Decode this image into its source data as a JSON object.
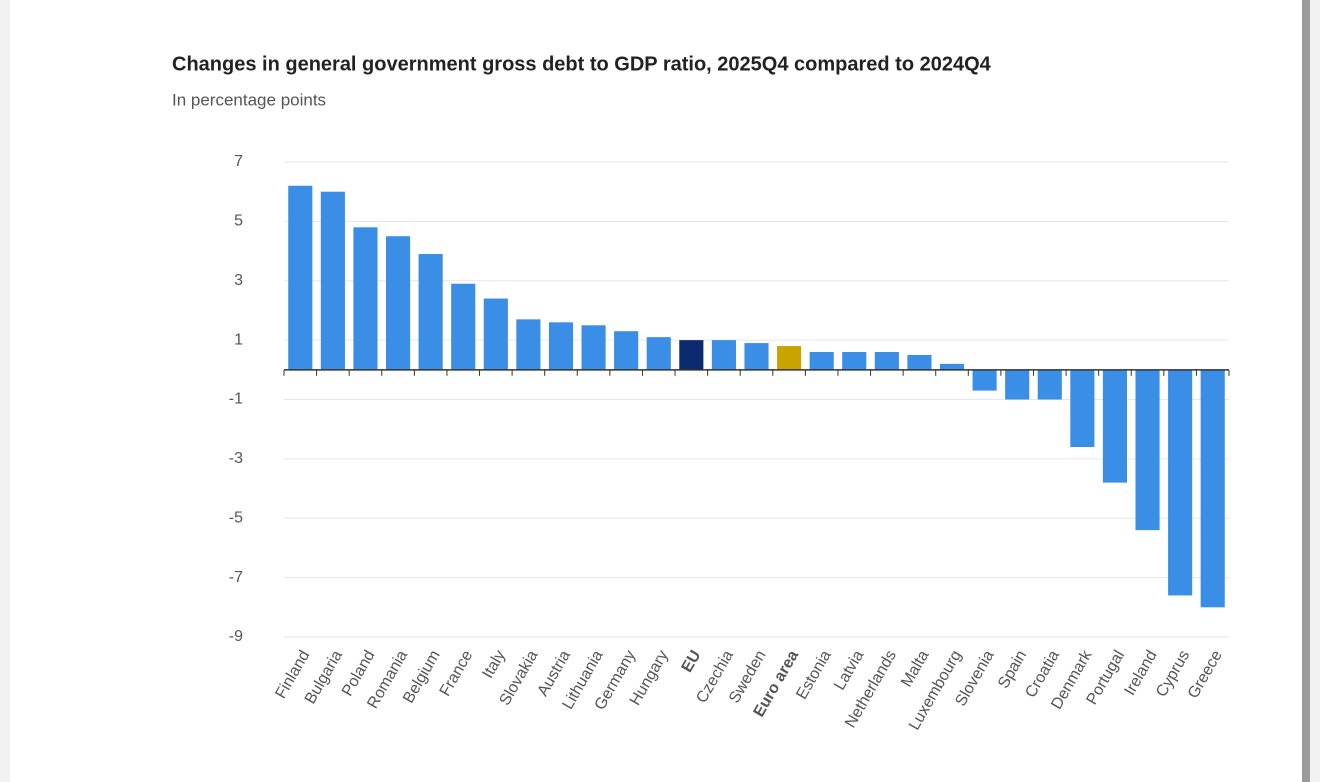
{
  "chart_data": {
    "type": "bar",
    "title": "Changes in general government gross debt to GDP ratio, 2025Q4 compared to 2024Q4",
    "subtitle": "In percentage points",
    "categories": [
      "Finland",
      "Bulgaria",
      "Poland",
      "Romania",
      "Belgium",
      "France",
      "Italy",
      "Slovakia",
      "Austria",
      "Lithuania",
      "Germany",
      "Hungary",
      "EU",
      "Czechia",
      "Sweden",
      "Euro area",
      "Estonia",
      "Latvia",
      "Netherlands",
      "Malta",
      "Luxembourg",
      "Slovenia",
      "Spain",
      "Croatia",
      "Denmark",
      "Portugal",
      "Ireland",
      "Cyprus",
      "Greece"
    ],
    "values": [
      6.2,
      6.0,
      4.8,
      4.5,
      3.9,
      2.9,
      2.4,
      1.7,
      1.6,
      1.5,
      1.3,
      1.1,
      1.0,
      1.0,
      0.9,
      0.8,
      0.6,
      0.6,
      0.6,
      0.5,
      0.2,
      -0.7,
      -1.0,
      -1.0,
      -2.6,
      -3.8,
      -5.4,
      -7.6,
      -8.0
    ],
    "color": "#3a8ee6",
    "colors": [
      "#3a8ee6",
      "#3a8ee6",
      "#3a8ee6",
      "#3a8ee6",
      "#3a8ee6",
      "#3a8ee6",
      "#3a8ee6",
      "#3a8ee6",
      "#3a8ee6",
      "#3a8ee6",
      "#3a8ee6",
      "#3a8ee6",
      "#0b2a6f",
      "#3a8ee6",
      "#3a8ee6",
      "#c9a300",
      "#3a8ee6",
      "#3a8ee6",
      "#3a8ee6",
      "#3a8ee6",
      "#3a8ee6",
      "#3a8ee6",
      "#3a8ee6",
      "#3a8ee6",
      "#3a8ee6",
      "#3a8ee6",
      "#3a8ee6",
      "#3a8ee6",
      "#3a8ee6"
    ],
    "ylim": [
      -9,
      7
    ],
    "yticks": [
      7,
      5,
      3,
      1,
      -1,
      -3,
      -5,
      -7,
      -9
    ],
    "grid": true
  }
}
